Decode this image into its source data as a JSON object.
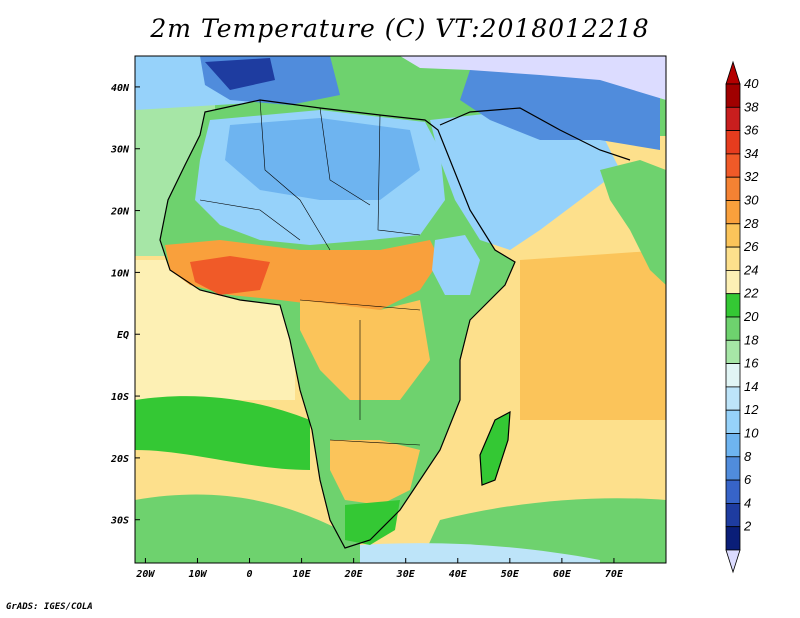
{
  "title": "2m Temperature (C)  VT:2018012218",
  "footer": "GrADS: IGES/COLA",
  "map": {
    "lat_labels": [
      "40N",
      "30N",
      "20N",
      "10N",
      "EQ",
      "10S",
      "20S",
      "30S"
    ],
    "lat_values": [
      40,
      30,
      20,
      10,
      0,
      -10,
      -20,
      -30
    ],
    "lon_labels": [
      "20W",
      "10W",
      "0",
      "10E",
      "20E",
      "30E",
      "40E",
      "50E",
      "60E",
      "70E"
    ],
    "lon_values": [
      -20,
      -10,
      0,
      10,
      20,
      30,
      40,
      50,
      60,
      70
    ],
    "lon_range": [
      -22,
      80
    ],
    "lat_range": [
      -37,
      45
    ]
  },
  "colorbar": {
    "labels": [
      "40",
      "38",
      "36",
      "34",
      "32",
      "30",
      "28",
      "26",
      "24",
      "22",
      "20",
      "18",
      "16",
      "14",
      "12",
      "10",
      "8",
      "6",
      "4",
      "2"
    ],
    "colors": [
      "#a00000",
      "#c81e1e",
      "#e63c1e",
      "#f05a28",
      "#f58233",
      "#f9a03c",
      "#fbc45a",
      "#fde08c",
      "#fdf0b4",
      "#34c834",
      "#6ed26e",
      "#a6e6a6",
      "#e1f5f5",
      "#bde4f9",
      "#96d2fa",
      "#6eb4f0",
      "#508cdc",
      "#3764c8",
      "#1e3ca0",
      "#0a1e78"
    ],
    "top_color": "#b40000",
    "bottom_color": "#dcdcff"
  }
}
